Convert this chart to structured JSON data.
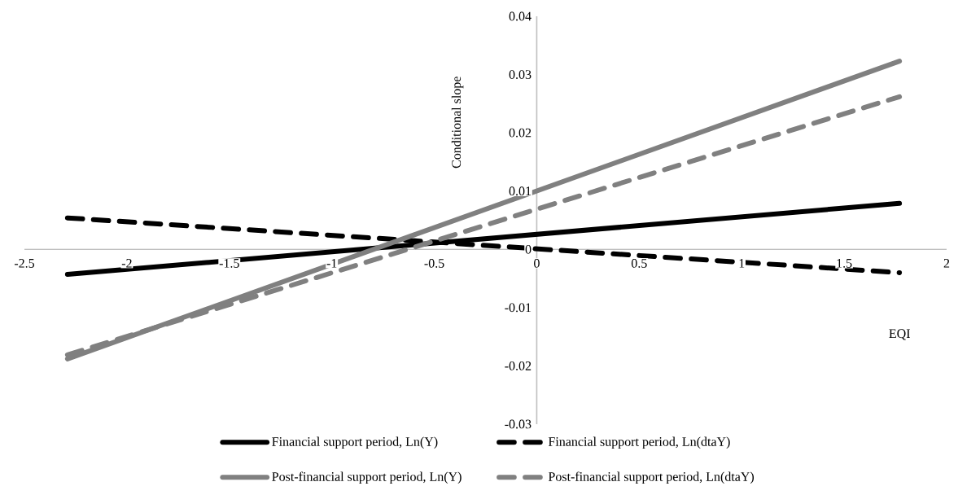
{
  "chart_data": {
    "type": "line",
    "xlabel": "EQI",
    "ylabel": "Conditional slope",
    "xlim": [
      -2.5,
      2
    ],
    "ylim": [
      -0.03,
      0.04
    ],
    "xticks": [
      -2.5,
      -2,
      -1.5,
      -1,
      -0.5,
      0,
      0.5,
      1,
      1.5,
      2
    ],
    "yticks": [
      -0.03,
      -0.02,
      -0.01,
      0,
      0.01,
      0.02,
      0.03,
      0.04
    ],
    "legend": "bottom",
    "x": [
      -2.29,
      1.77
    ],
    "series": [
      {
        "name": "Financial support period, Ln(Y)",
        "color": "#000000",
        "line_style": "solid",
        "values": [
          -0.0043,
          0.0079
        ]
      },
      {
        "name": "Financial support period, Ln(dtaY)",
        "color": "#000000",
        "line_style": "dashed",
        "values": [
          0.0054,
          -0.004
        ]
      },
      {
        "name": "Post-financial support period, Ln(Y)",
        "color": "#808080",
        "line_style": "solid",
        "values": [
          -0.0188,
          0.0323
        ]
      },
      {
        "name": "Post-financial support period, Ln(dtaY)",
        "color": "#808080",
        "line_style": "dashed",
        "values": [
          -0.0181,
          0.0262
        ]
      }
    ]
  }
}
